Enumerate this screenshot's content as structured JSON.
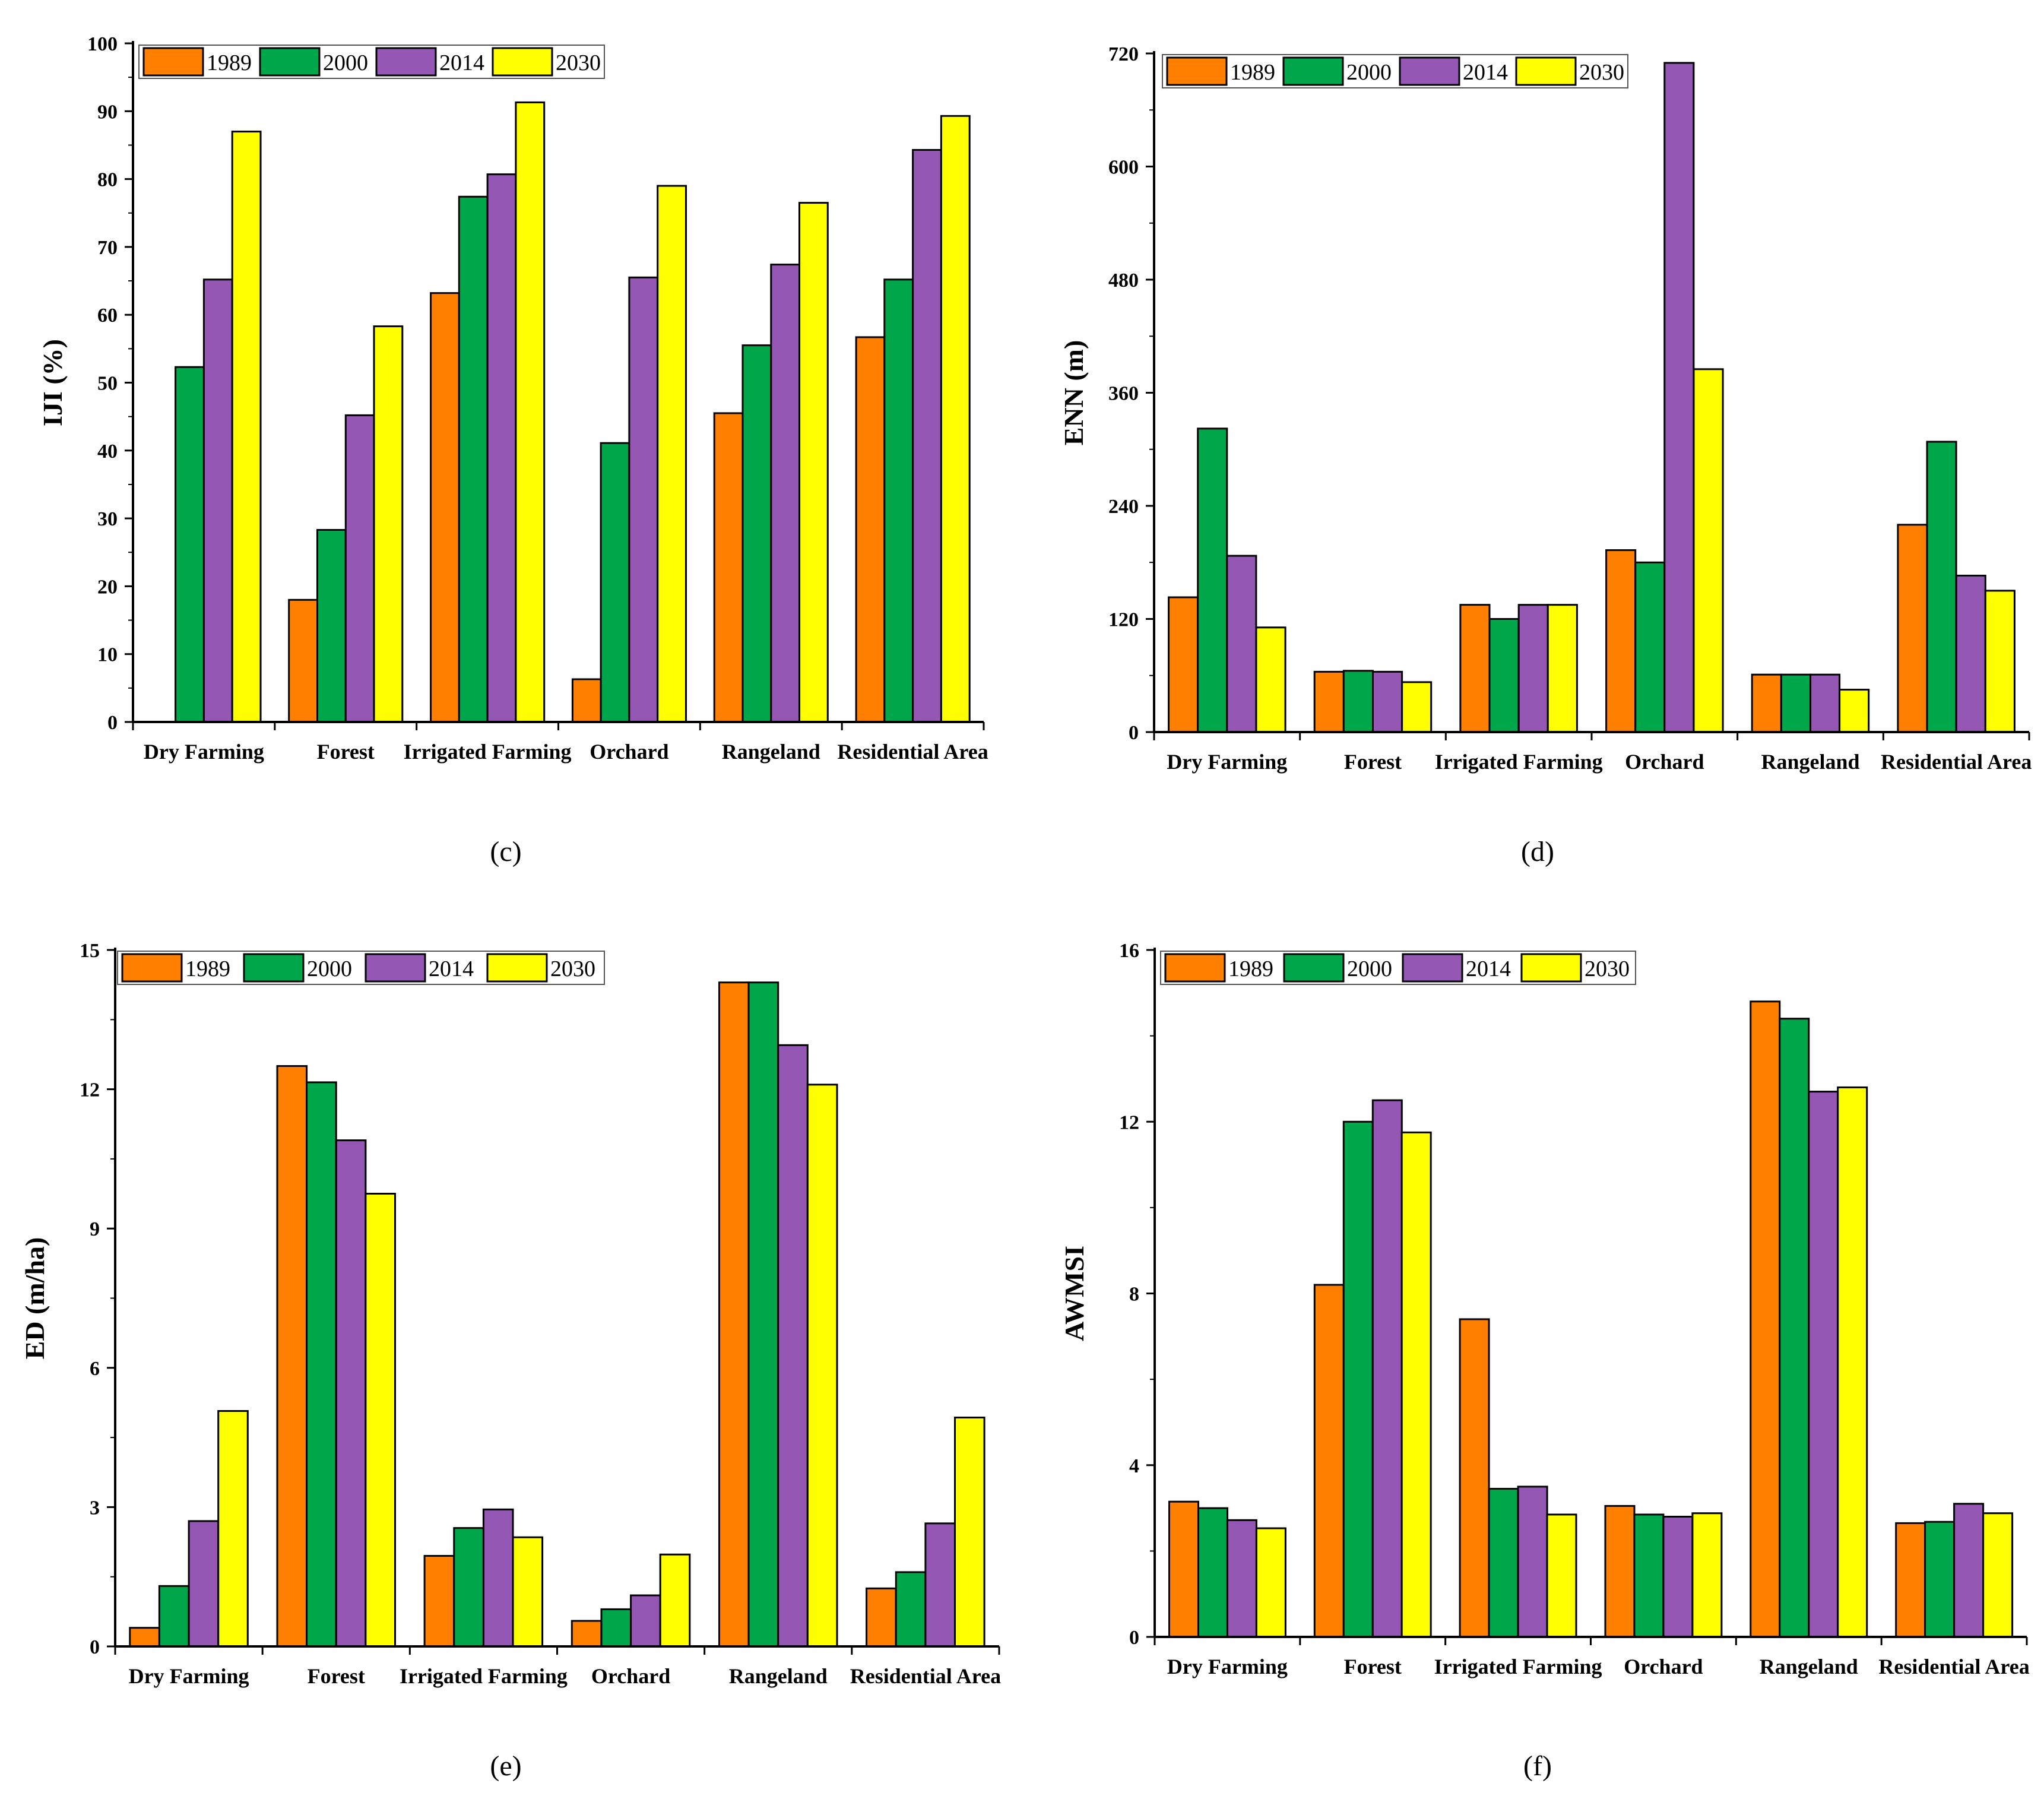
{
  "legend": {
    "series": [
      "1989",
      "2000",
      "2014",
      "2030"
    ],
    "colors": [
      "#FF7F00",
      "#00A64A",
      "#9457B4",
      "#FFFF00"
    ]
  },
  "chart_data": [
    {
      "type": "bar",
      "caption": "(c)",
      "ylabel": "IJI (%)",
      "ylim": [
        0,
        100
      ],
      "yticks": [
        0,
        10,
        20,
        30,
        40,
        50,
        60,
        70,
        80,
        90,
        100
      ],
      "categories": [
        "Dry Farming",
        "Forest",
        "Irrigated Farming",
        "Orchard",
        "Rangeland",
        "Residential Area"
      ],
      "series": [
        {
          "name": "1989",
          "values": [
            0,
            18,
            63.2,
            6.3,
            45.5,
            56.7
          ]
        },
        {
          "name": "2000",
          "values": [
            52.3,
            28.3,
            77.4,
            41.1,
            55.5,
            65.2
          ]
        },
        {
          "name": "2014",
          "values": [
            65.2,
            45.2,
            80.7,
            65.5,
            67.4,
            84.3
          ]
        },
        {
          "name": "2030",
          "values": [
            87,
            58.3,
            91.3,
            79,
            76.5,
            89.3
          ]
        }
      ],
      "legend_position": "top-left",
      "grid": false
    },
    {
      "type": "bar",
      "caption": "(d)",
      "ylabel": "ENN (m)",
      "ylim": [
        0,
        720
      ],
      "yticks": [
        0,
        120,
        240,
        360,
        480,
        600,
        720
      ],
      "categories": [
        "Dry Farming",
        "Forest",
        "Irrigated Farming",
        "Orchard",
        "Rangeland",
        "Residential Area"
      ],
      "series": [
        {
          "name": "1989",
          "values": [
            143,
            64,
            135,
            193,
            61,
            220
          ]
        },
        {
          "name": "2000",
          "values": [
            322,
            65,
            120,
            180,
            61,
            308
          ]
        },
        {
          "name": "2014",
          "values": [
            187,
            64,
            135,
            710,
            61,
            166
          ]
        },
        {
          "name": "2030",
          "values": [
            111,
            53,
            135,
            385,
            45,
            150
          ]
        }
      ],
      "legend_position": "top-left",
      "grid": false
    },
    {
      "type": "bar",
      "caption": "(e)",
      "ylabel": "ED (m/ha)",
      "ylim": [
        0,
        15
      ],
      "yticks": [
        0,
        3,
        6,
        9,
        12,
        15
      ],
      "categories": [
        "Dry Farming",
        "Forest",
        "Irrigated Farming",
        "Orchard",
        "Rangeland",
        "Residential Area"
      ],
      "series": [
        {
          "name": "1989",
          "values": [
            0.4,
            12.5,
            1.95,
            0.55,
            14.3,
            1.25
          ]
        },
        {
          "name": "2000",
          "values": [
            1.3,
            12.15,
            2.55,
            0.8,
            14.3,
            1.6
          ]
        },
        {
          "name": "2014",
          "values": [
            2.7,
            10.9,
            2.95,
            1.1,
            12.95,
            2.65
          ]
        },
        {
          "name": "2030",
          "values": [
            5.07,
            9.75,
            2.35,
            1.98,
            12.1,
            4.93
          ]
        }
      ],
      "legend_position": "top-left",
      "grid": false
    },
    {
      "type": "bar",
      "caption": "(f)",
      "ylabel": "AWMSI",
      "ylim": [
        0,
        16
      ],
      "yticks": [
        0,
        4,
        8,
        12,
        16
      ],
      "categories": [
        "Dry Farming",
        "Forest",
        "Irrigated Farming",
        "Orchard",
        "Rangeland",
        "Residential Area"
      ],
      "series": [
        {
          "name": "1989",
          "values": [
            3.15,
            8.2,
            7.4,
            3.05,
            14.8,
            2.65
          ]
        },
        {
          "name": "2000",
          "values": [
            3.0,
            12.0,
            3.45,
            2.85,
            14.4,
            2.68
          ]
        },
        {
          "name": "2014",
          "values": [
            2.72,
            12.5,
            3.5,
            2.8,
            12.7,
            3.1
          ]
        },
        {
          "name": "2030",
          "values": [
            2.53,
            11.75,
            2.85,
            2.88,
            12.8,
            2.88
          ]
        }
      ],
      "legend_position": "top-left",
      "grid": false
    }
  ]
}
